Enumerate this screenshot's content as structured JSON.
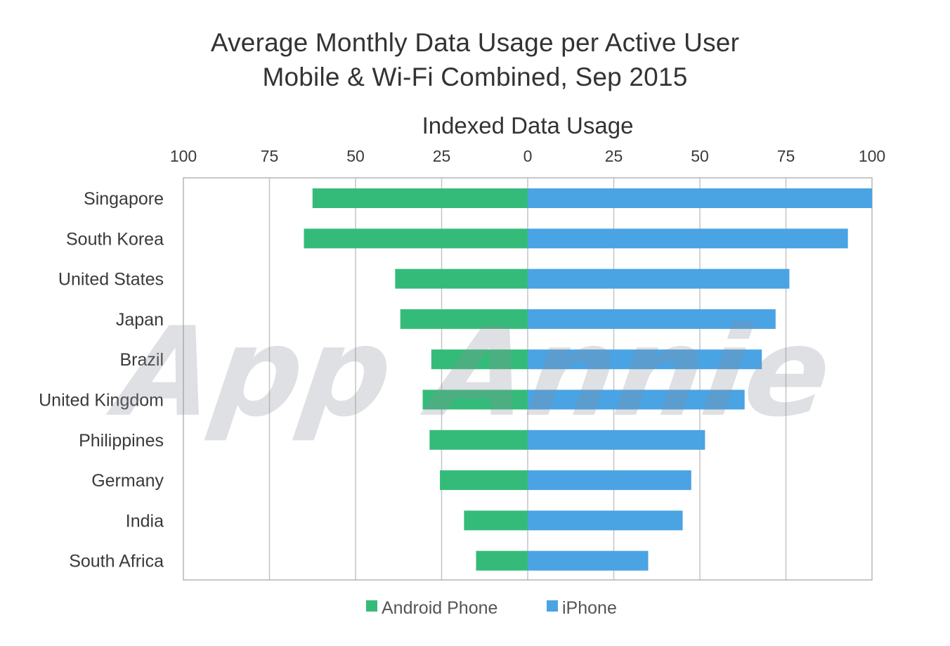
{
  "chart_data": {
    "type": "bar",
    "orientation": "horizontal-diverging",
    "title": "Average Monthly Data Usage per Active User",
    "subtitle": "Mobile & Wi-Fi Combined, Sep 2015",
    "axis_title": "Indexed Data Usage",
    "xlim": [
      -100,
      100
    ],
    "tick_values": [
      -100,
      -75,
      -50,
      -25,
      0,
      25,
      50,
      75,
      100
    ],
    "tick_labels": [
      "100",
      "75",
      "50",
      "25",
      "0",
      "25",
      "50",
      "75",
      "100"
    ],
    "grid": true,
    "categories": [
      "Singapore",
      "South Korea",
      "United States",
      "Japan",
      "Brazil",
      "United Kingdom",
      "Philippines",
      "Germany",
      "India",
      "South Africa"
    ],
    "series": [
      {
        "name": "Android Phone",
        "color": "#35bb79",
        "direction": "left",
        "values": [
          62.5,
          65,
          38.5,
          37,
          28,
          30.5,
          28.5,
          25.5,
          18.5,
          15
        ]
      },
      {
        "name": "iPhone",
        "color": "#4aa3e3",
        "direction": "right",
        "values": [
          100,
          93,
          76,
          72,
          68,
          63,
          51.5,
          47.5,
          45,
          35
        ]
      }
    ],
    "legend_position": "bottom-center",
    "watermark": "App Annie"
  }
}
